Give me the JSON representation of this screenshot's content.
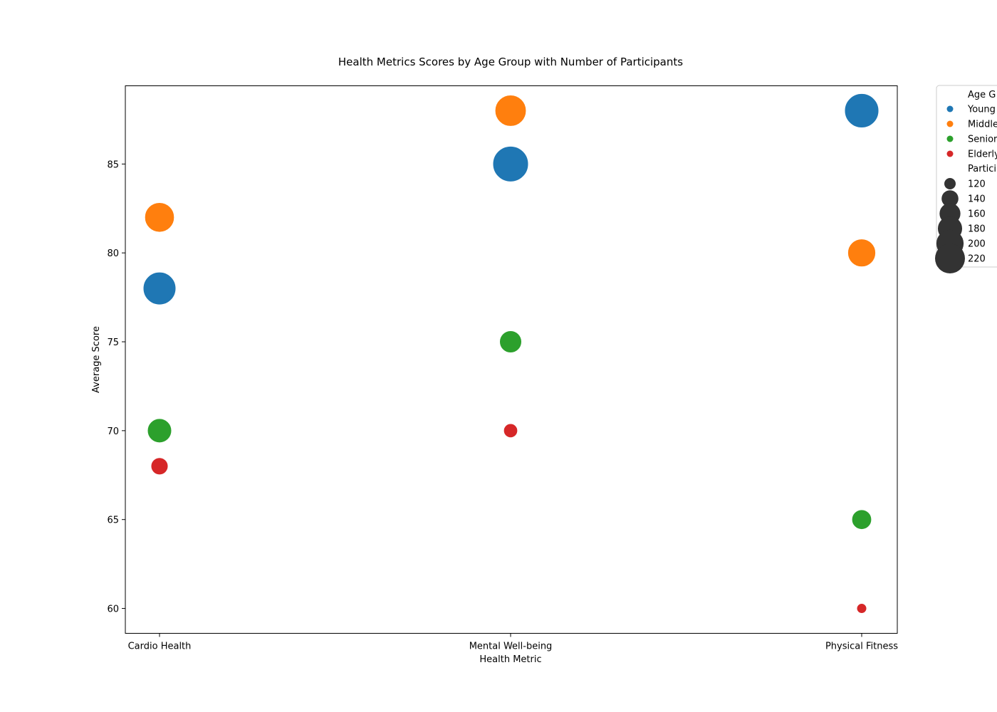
{
  "chart_data": {
    "type": "scatter",
    "title": "Health Metrics Scores by Age Group with Number of Participants",
    "xlabel": "Health Metric",
    "ylabel": "Average Score",
    "categories": [
      "Cardio Health",
      "Mental Well-being",
      "Physical Fitness"
    ],
    "ylim": [
      58.6,
      89.4
    ],
    "yticks": [
      60,
      65,
      70,
      75,
      80,
      85
    ],
    "grid": false,
    "legend_placement": "outside top-right",
    "hue_title": "Age G",
    "size_title": "Partici",
    "size_legend": [
      120,
      140,
      160,
      180,
      200,
      220
    ],
    "series": [
      {
        "name": "Young",
        "color": "#1f77b4",
        "values": [
          78,
          85,
          88
        ],
        "participants": [
          200,
          220,
          210
        ]
      },
      {
        "name": "Middle",
        "color": "#ff7f0e",
        "values": [
          82,
          88,
          80
        ],
        "participants": [
          180,
          190,
          170
        ]
      },
      {
        "name": "Senior",
        "color": "#2ca02c",
        "values": [
          70,
          75,
          65
        ],
        "participants": [
          150,
          140,
          130
        ]
      },
      {
        "name": "Elderly",
        "color": "#d62728",
        "values": [
          68,
          70,
          60
        ],
        "participants": [
          120,
          110,
          100
        ]
      }
    ]
  }
}
